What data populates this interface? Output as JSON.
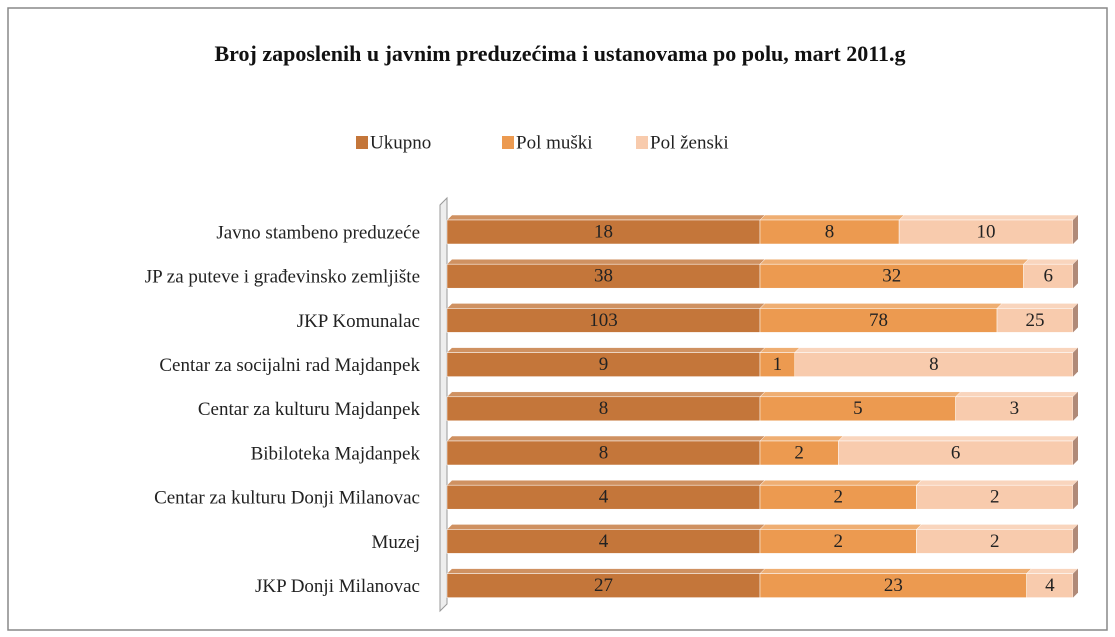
{
  "chart_data": {
    "type": "bar",
    "orientation": "horizontal",
    "stacked": "percent",
    "title": "Broj zaposlenih u javnim preduzećima i ustanovama po polu,  mart 2011.g",
    "categories": [
      "Javno stambeno preduzeće",
      "JP za puteve i građevinsko zemljište",
      "JKP Komunalac",
      "Centar za socijalni rad Majdanpek",
      "Centar za kulturu Majdanpek",
      "Bibiloteka Majdanpek",
      "Centar za kulturu Donji Milanovac",
      "Muzej",
      "JKP Donji Milanovac"
    ],
    "series": [
      {
        "name": "Ukupno",
        "color": "#c4763a",
        "values": [
          18,
          38,
          103,
          9,
          8,
          8,
          4,
          4,
          27
        ]
      },
      {
        "name": "Pol muški",
        "color": "#ec9a50",
        "values": [
          8,
          32,
          78,
          1,
          5,
          2,
          2,
          2,
          23
        ]
      },
      {
        "name": "Pol ženski",
        "color": "#f8cbad",
        "values": [
          10,
          6,
          25,
          8,
          3,
          6,
          2,
          2,
          4
        ]
      }
    ],
    "legend": "top",
    "data_labels": true
  }
}
